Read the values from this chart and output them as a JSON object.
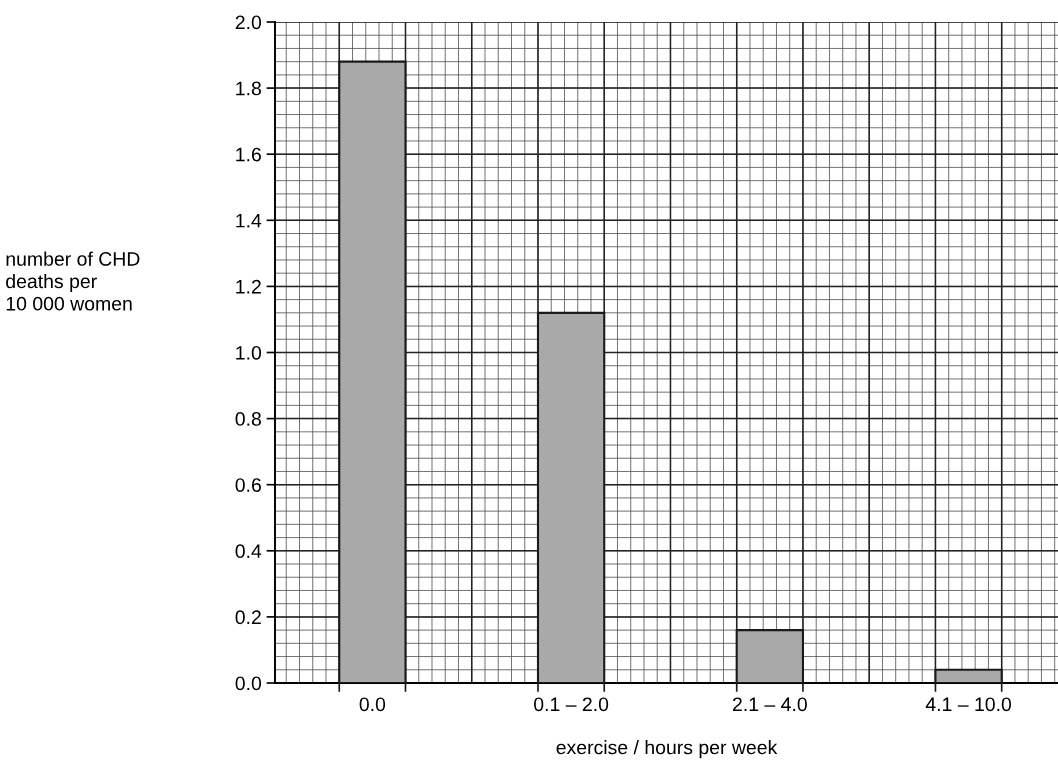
{
  "chart_data": {
    "type": "bar",
    "xlabel": "exercise / hours per week",
    "ylabel": "number of CHD\ndeaths per\n10 000 women",
    "categories": [
      "0.0",
      "0.1 – 2.0",
      "2.1 – 4.0",
      "4.1 – 10.0"
    ],
    "values": [
      1.88,
      1.12,
      0.16,
      0.04
    ],
    "color": "#a9a9a9",
    "ylim": [
      0,
      2.0
    ],
    "yticks": [
      {
        "value": 0,
        "label": "0.0"
      },
      {
        "value": 0.2,
        "label": "0.2"
      },
      {
        "value": 0.4,
        "label": "0.4"
      },
      {
        "value": 0.6,
        "label": "0.6"
      },
      {
        "value": 0.8,
        "label": "0.8"
      },
      {
        "value": 1.0,
        "label": "1.0"
      },
      {
        "value": 1.2,
        "label": "1.2"
      },
      {
        "value": 1.4,
        "label": "1.4"
      },
      {
        "value": 1.6,
        "label": "1.6"
      },
      {
        "value": 1.8,
        "label": "1.8"
      },
      {
        "value": 2.0,
        "label": "2.0"
      }
    ],
    "grid": true
  }
}
